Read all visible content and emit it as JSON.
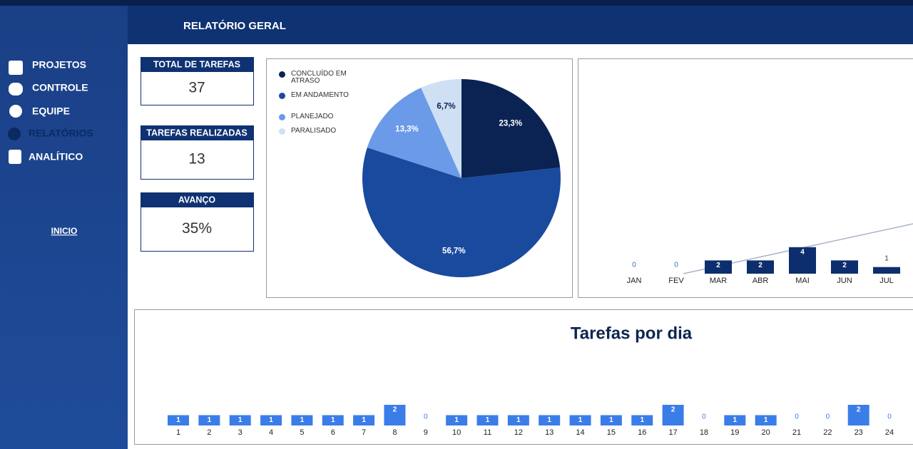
{
  "header": {
    "title": "RELATÓRIO GERAL"
  },
  "sidebar": {
    "items": [
      "PROJETOS",
      "CONTROLE",
      "EQUIPE",
      "RELATÓRIOS",
      "ANALÍTICO"
    ],
    "link": "INICIO"
  },
  "kpis": [
    {
      "label": "TOTAL DE TAREFAS",
      "value": "37"
    },
    {
      "label": "TAREFAS REALIZADAS",
      "value": "13"
    },
    {
      "label": "AVANÇO",
      "value": "35%"
    }
  ],
  "chart_data": [
    {
      "type": "pie",
      "categories": [
        "CONCLUÍDO EM ATRASO",
        "EM ANDAMENTO",
        "PLANEJADO",
        "PARALISADO"
      ],
      "values": [
        23.3,
        56.7,
        13.3,
        6.7
      ],
      "value_labels": [
        "23,3%",
        "56,7%",
        "13,3%",
        "6,7%"
      ],
      "colors": [
        "#0b2352",
        "#1a4a9e",
        "#6a9ae8",
        "#cfe0f5"
      ]
    },
    {
      "type": "bar",
      "categories": [
        "JAN",
        "FEV",
        "MAR",
        "ABR",
        "MAI",
        "JUN",
        "JUL"
      ],
      "values": [
        0,
        0,
        2,
        2,
        4,
        2,
        1
      ],
      "color": "#0d2e6e"
    },
    {
      "type": "bar",
      "title": "Tarefas por dia",
      "categories": [
        "1",
        "2",
        "3",
        "4",
        "5",
        "6",
        "7",
        "8",
        "9",
        "10",
        "11",
        "12",
        "13",
        "14",
        "15",
        "16",
        "17",
        "18",
        "19",
        "20",
        "21",
        "22",
        "23",
        "24"
      ],
      "values": [
        1,
        1,
        1,
        1,
        1,
        1,
        1,
        2,
        0,
        1,
        1,
        1,
        1,
        1,
        1,
        1,
        2,
        0,
        1,
        1,
        0,
        0,
        2,
        0
      ],
      "color": "#3b7de8"
    }
  ]
}
